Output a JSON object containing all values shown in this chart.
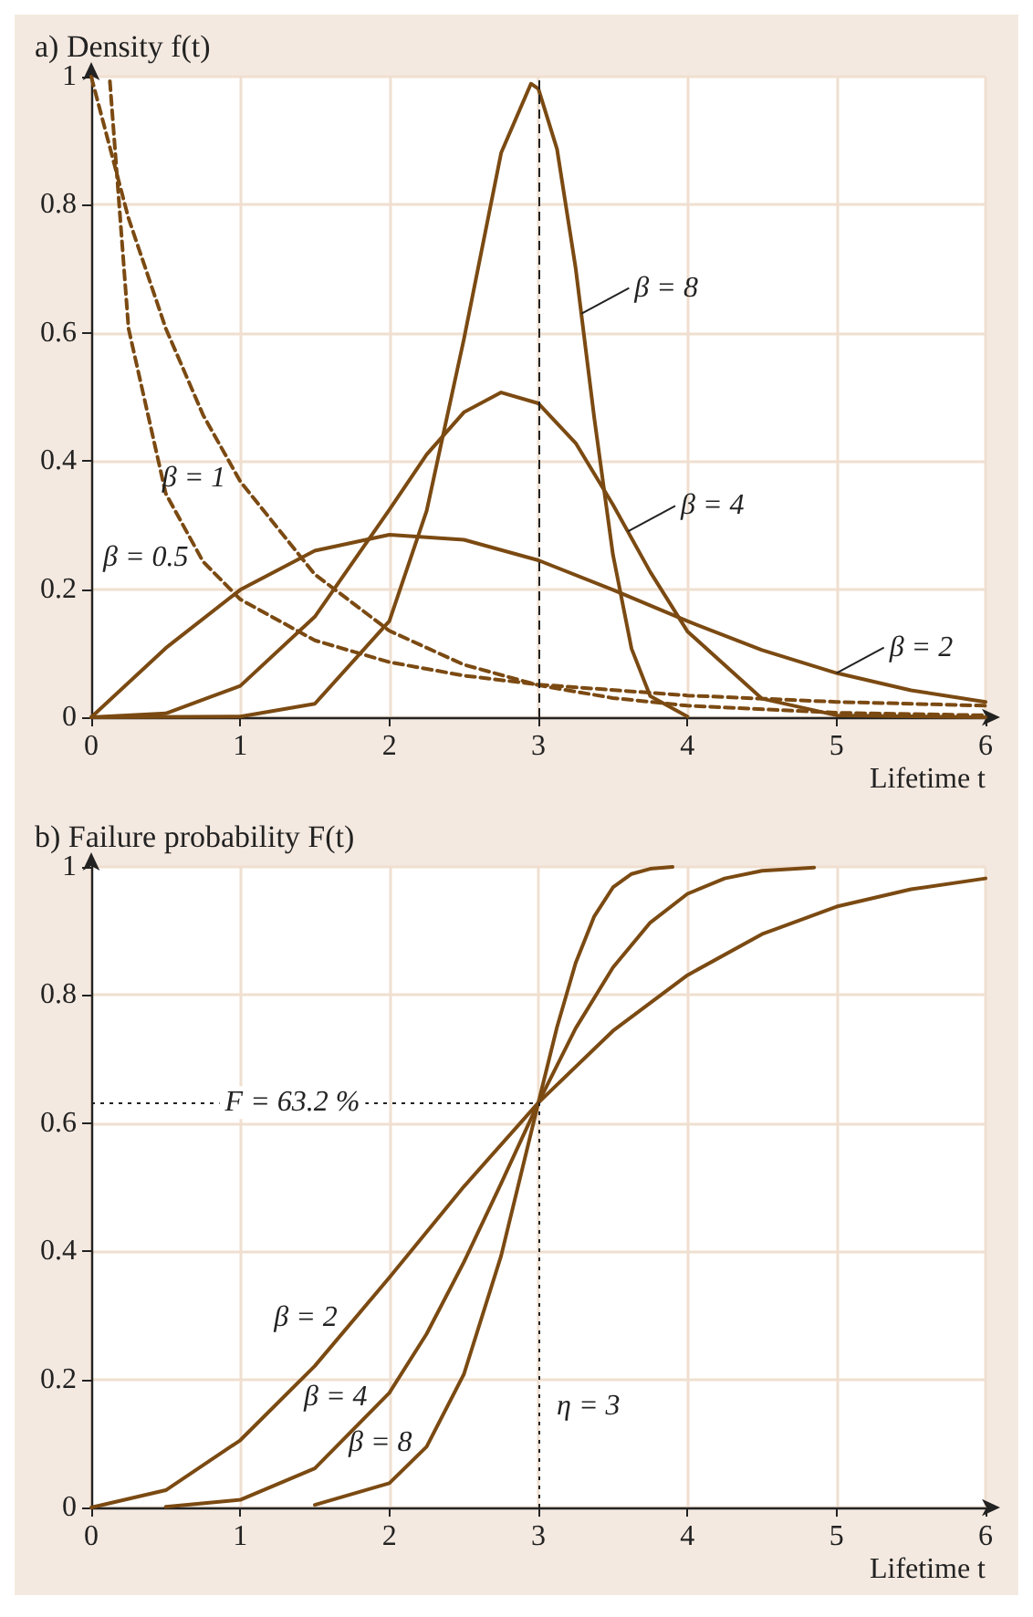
{
  "chart_data": [
    {
      "type": "line",
      "title": "a) Density f(t)",
      "xlabel": "Lifetime t",
      "xlim": [
        0,
        6
      ],
      "ylim": [
        0,
        1
      ],
      "xticks": [
        0,
        1,
        2,
        3,
        4,
        5,
        6
      ],
      "yticks": [
        0,
        0.2,
        0.4,
        0.6,
        0.8,
        1
      ],
      "grid": true,
      "marker": "none",
      "line_style": "solid",
      "series": [
        {
          "color": "#7b4a12",
          "x": [
            0,
            1,
            1.5,
            2,
            2.25,
            2.5,
            2.75,
            2.95,
            3,
            3.125,
            3.25,
            3.375,
            3.5,
            3.625,
            3.75,
            4
          ],
          "values": [
            0,
            0.001,
            0.021,
            0.15,
            0.322,
            0.59,
            0.881,
            0.989,
            0.981,
            0.887,
            0.701,
            0.467,
            0.254,
            0.107,
            0.033,
            0.001
          ]
        },
        {
          "color": "#7b4a12",
          "x": [
            0,
            0.5,
            1,
            1.5,
            2,
            2.25,
            2.5,
            2.75,
            3,
            3.25,
            3.5,
            3.75,
            4,
            4.5,
            5,
            6
          ],
          "values": [
            0,
            0.006,
            0.049,
            0.157,
            0.324,
            0.41,
            0.476,
            0.507,
            0.49,
            0.428,
            0.332,
            0.227,
            0.134,
            0.029,
            0.003,
            0
          ]
        },
        {
          "color": "#7b4a12",
          "x": [
            0,
            0.5,
            1,
            1.5,
            2,
            2.5,
            3,
            3.5,
            4,
            4.5,
            5,
            5.5,
            6
          ],
          "values": [
            0,
            0.108,
            0.199,
            0.26,
            0.285,
            0.277,
            0.245,
            0.199,
            0.15,
            0.105,
            0.069,
            0.042,
            0.024
          ]
        },
        {
          "color": "#7b4a12",
          "line_style": "dashed",
          "x": [
            0,
            0.25,
            0.5,
            0.75,
            1,
            1.5,
            2,
            2.5,
            3,
            3.5,
            4,
            5,
            6
          ],
          "values": [
            1,
            0.779,
            0.607,
            0.472,
            0.368,
            0.223,
            0.135,
            0.082,
            0.05,
            0.03,
            0.018,
            0.007,
            0.003
          ]
        },
        {
          "color": "#7b4a12",
          "line_style": "dashed",
          "x": [
            0.125,
            0.25,
            0.5,
            0.75,
            1,
            1.5,
            2,
            2.5,
            3,
            4,
            5,
            6
          ],
          "values": [
            0.993,
            0.607,
            0.349,
            0.243,
            0.184,
            0.12,
            0.086,
            0.065,
            0.051,
            0.034,
            0.024,
            0.018
          ]
        }
      ],
      "ref_lines": [
        {
          "axis": "x",
          "value": 3,
          "line_style": "dashed"
        }
      ],
      "annotations": [
        {
          "text": "β = 8",
          "x": 3.29,
          "y": 0.63
        },
        {
          "text": "β = 4",
          "x": 3.6,
          "y": 0.29
        },
        {
          "text": "β = 2",
          "x": 5,
          "y": 0.069
        },
        {
          "text": "β = 1",
          "x": 1,
          "y": 0.368
        },
        {
          "text": "β = 0.5",
          "x": 0.75,
          "y": 0.243
        }
      ]
    },
    {
      "type": "line",
      "title": "b) Failure probability F(t)",
      "xlabel": "Lifetime t",
      "xlim": [
        0,
        6
      ],
      "ylim": [
        0,
        1
      ],
      "xticks": [
        0,
        1,
        2,
        3,
        4,
        5,
        6
      ],
      "yticks": [
        0,
        0.2,
        0.4,
        0.6,
        0.8,
        1
      ],
      "grid": true,
      "marker": "none",
      "line_style": "solid",
      "series": [
        {
          "color": "#7b4a12",
          "x": [
            0,
            0.5,
            1,
            1.5,
            2,
            2.5,
            3,
            3.5,
            4,
            4.5,
            5,
            5.5,
            6
          ],
          "values": [
            0,
            0.027,
            0.105,
            0.221,
            0.359,
            0.501,
            0.632,
            0.744,
            0.831,
            0.895,
            0.938,
            0.965,
            0.982
          ]
        },
        {
          "color": "#7b4a12",
          "x": [
            0.5,
            1,
            1.5,
            2,
            2.25,
            2.5,
            2.75,
            3,
            3.25,
            3.5,
            3.75,
            4,
            4.25,
            4.5,
            4.85
          ],
          "values": [
            0.001,
            0.012,
            0.061,
            0.179,
            0.271,
            0.383,
            0.506,
            0.632,
            0.748,
            0.843,
            0.913,
            0.958,
            0.982,
            0.994,
            0.999
          ]
        },
        {
          "color": "#7b4a12",
          "x": [
            1.5,
            2,
            2.25,
            2.5,
            2.75,
            3,
            3.125,
            3.25,
            3.375,
            3.5,
            3.625,
            3.75,
            3.9
          ],
          "values": [
            0.004,
            0.038,
            0.095,
            0.208,
            0.393,
            0.632,
            0.75,
            0.85,
            0.923,
            0.968,
            0.989,
            0.997,
            1
          ]
        }
      ],
      "ref_lines": [
        {
          "axis": "x",
          "value": 3,
          "line_style": "dotted",
          "label": "η = 3"
        },
        {
          "axis": "y",
          "value": 0.632,
          "line_style": "dotted",
          "label": "F = 63.2 %"
        }
      ],
      "annotations": [
        {
          "text": "β = 2",
          "x": 1.75,
          "y": 0.29
        },
        {
          "text": "β = 4",
          "x": 1.95,
          "y": 0.167
        },
        {
          "text": "β = 8",
          "x": 2.25,
          "y": 0.095
        }
      ]
    }
  ]
}
